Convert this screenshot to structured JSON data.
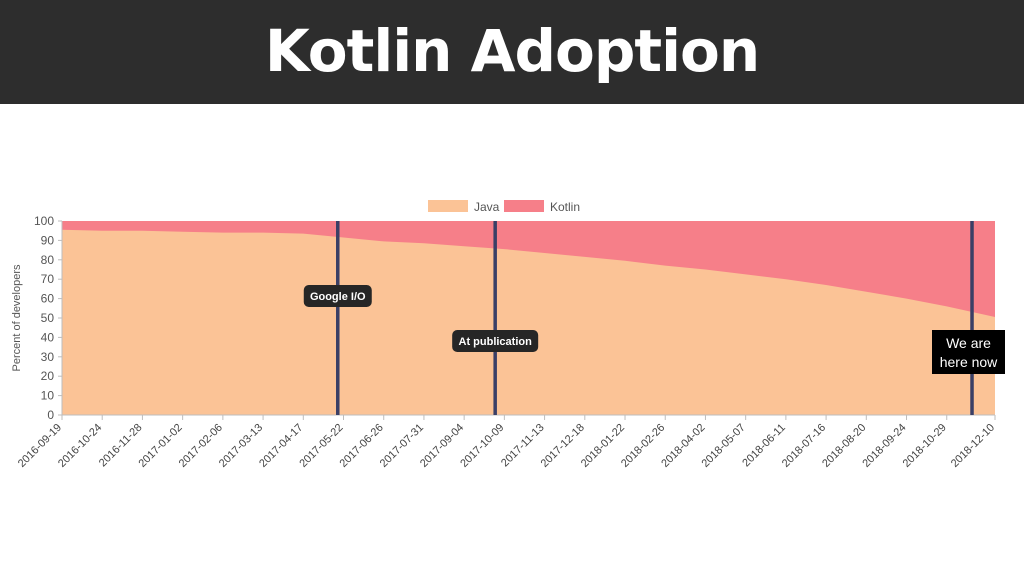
{
  "slide": {
    "title": "Kotlin Adoption"
  },
  "colors": {
    "java": "#fbc396",
    "kotlin": "#f67f89",
    "marker": "#3a3f66",
    "title_bar": "#2d2d2d",
    "note_bg": "#262626",
    "here_bg": "#000000"
  },
  "chart_data": {
    "type": "area",
    "stacked": true,
    "ylabel": "Percent of developers",
    "xlabel": "",
    "ylim": [
      0,
      100
    ],
    "yticks": [
      0,
      10,
      20,
      30,
      40,
      50,
      60,
      70,
      80,
      90,
      100
    ],
    "grid": false,
    "legend_position": "top-center",
    "categories": [
      "2016-09-19",
      "2016-10-24",
      "2016-11-28",
      "2017-01-02",
      "2017-02-06",
      "2017-03-13",
      "2017-04-17",
      "2017-05-22",
      "2017-06-26",
      "2017-07-31",
      "2017-09-04",
      "2017-10-09",
      "2017-11-13",
      "2017-12-18",
      "2018-01-22",
      "2018-02-26",
      "2018-04-02",
      "2018-05-07",
      "2018-06-11",
      "2018-07-16",
      "2018-08-20",
      "2018-09-24",
      "2018-10-29",
      "2018-12-10"
    ],
    "series": [
      {
        "name": "Java",
        "values": [
          95.5,
          95,
          95,
          94.5,
          94,
          94,
          93.5,
          91.5,
          89.5,
          88.5,
          87,
          85.5,
          83.5,
          81.5,
          79.5,
          77,
          75,
          72.5,
          70,
          67,
          63.5,
          60,
          56,
          50.5
        ]
      },
      {
        "name": "Kotlin",
        "values": [
          4.5,
          5,
          5,
          5.5,
          6,
          6,
          6.5,
          8.5,
          10.5,
          11.5,
          13,
          14.5,
          16.5,
          18.5,
          20.5,
          23,
          25,
          27.5,
          30,
          33,
          36.5,
          40,
          44,
          49.5
        ]
      }
    ],
    "annotations": [
      {
        "label": "Google I/O",
        "x": "2017-05-17"
      },
      {
        "label": "At publication",
        "x": "2017-10-01"
      },
      {
        "label": "We are\nhere now",
        "x": "2018-11-20"
      }
    ]
  }
}
